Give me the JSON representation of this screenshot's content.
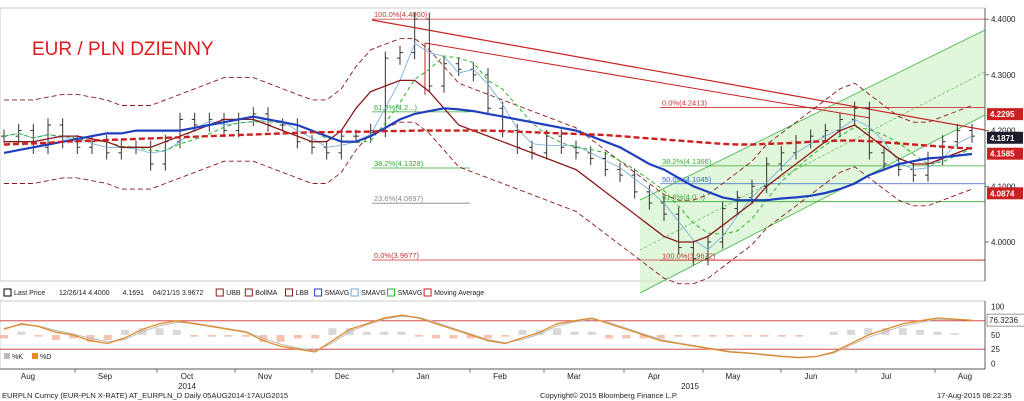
{
  "title": "EUR / PLN DZIENNY",
  "colors": {
    "candle": "#333333",
    "boll_band": "#8b1a1a",
    "sma_blue": "#1f3fbf",
    "sma_red": "#cc1f1f",
    "sma_green": "#2db42d",
    "sma_light": "#6fa8dc",
    "channel_fill": "#c8f0c0",
    "channel_line": "#3cb43c",
    "trendline": "#cc2020",
    "fib_red": "#cc3333",
    "fib_green": "#33aa33",
    "fib_blue": "#3366cc",
    "fib_grey": "#888888",
    "stoch_k": "#e08a2a",
    "stoch_d": "#bbbbbb",
    "stoch_hist": "#f3b49c",
    "badge_red": "#cc1f1f",
    "badge_dark": "#1c1c2c"
  },
  "chart_data": [
    {
      "type": "line",
      "title": "EUR / PLN DZIENNY",
      "ylim": [
        3.93,
        4.42
      ],
      "yticks": [
        4.0,
        4.1,
        4.2,
        4.3,
        4.4
      ],
      "ytick_labels": [
        "4.0000",
        "4.1000",
        "4.2000",
        "4.3000",
        "4.4000"
      ],
      "x_month_labels": [
        "Aug",
        "Sep",
        "Oct",
        "Nov",
        "Dec",
        "Jan",
        "Feb",
        "Mar",
        "Apr",
        "May",
        "Jun",
        "Jul",
        "Aug"
      ],
      "x_year_labels": [
        "2014",
        "2015"
      ],
      "price_badges": [
        {
          "label": "4.2295",
          "value": 4.2295,
          "color": "badge_red"
        },
        {
          "label": "4.1871",
          "value": 4.1871,
          "color": "badge_dark"
        },
        {
          "label": "4.1585",
          "value": 4.1585,
          "color": "badge_red"
        },
        {
          "label": "4.0874",
          "value": 4.0874,
          "color": "badge_red"
        }
      ],
      "fib_levels": [
        {
          "label": "100.0%(4.4000)",
          "value": 4.4,
          "color": "fib_red"
        },
        {
          "label": "61.8%(4.2...)",
          "value": 4.2335,
          "color": "fib_green"
        },
        {
          "label": "0.0%(4.2413)",
          "value": 4.2413,
          "color": "fib_red"
        },
        {
          "label": "38.2%(4.1328)",
          "value": 4.1328,
          "color": "fib_green"
        },
        {
          "label": "38.2%(4.1366)",
          "value": 4.1366,
          "color": "fib_green"
        },
        {
          "label": "50.0%(4.1045)",
          "value": 4.1045,
          "color": "fib_blue"
        },
        {
          "label": "61.8%(4.0...)",
          "value": 4.0724,
          "color": "fib_green"
        },
        {
          "label": "23.6%(4.0697)",
          "value": 4.0697,
          "color": "fib_grey"
        },
        {
          "label": "0.0%(3.9677)",
          "value": 3.9677,
          "color": "fib_red"
        },
        {
          "label": "100.0%(3.9672)",
          "value": 3.9672,
          "color": "fib_red"
        }
      ],
      "legend": [
        {
          "icon": "bar",
          "label": "Last Price"
        },
        {
          "icon": "none",
          "label": "12/26/14 4.4000"
        },
        {
          "icon": "none",
          "label": "4.1691"
        },
        {
          "icon": "none",
          "label": "04/21/15 3.9672"
        },
        {
          "icon": "ubb",
          "label": "UBB"
        },
        {
          "icon": "boll",
          "label": "BollMA"
        },
        {
          "icon": "lbb",
          "label": "LBB"
        },
        {
          "icon": "sma1",
          "label": "SMAVG"
        },
        {
          "icon": "sma2",
          "label": "SMAVG"
        },
        {
          "icon": "sma3",
          "label": "SMAVG"
        },
        {
          "icon": "ma",
          "label": "Moving Average"
        }
      ],
      "series": [
        {
          "name": "Last Price",
          "values": [
            4.19,
            4.2,
            4.17,
            4.21,
            4.18,
            4.17,
            4.18,
            4.16,
            4.17,
            4.17,
            4.14,
            4.18,
            4.22,
            4.21,
            4.22,
            4.2,
            4.22,
            4.23,
            4.21,
            4.21,
            4.18,
            4.17,
            4.16,
            4.19,
            4.19,
            4.2,
            4.33,
            4.34,
            4.4,
            4.28,
            4.32,
            4.31,
            4.3,
            4.24,
            4.2,
            4.17,
            4.16,
            4.19,
            4.17,
            4.16,
            4.15,
            4.13,
            4.12,
            4.09,
            4.07,
            4.05,
            3.99,
            3.97,
            4.0,
            4.06,
            4.08,
            4.1,
            4.14,
            4.16,
            4.18,
            4.19,
            4.2,
            4.22,
            4.24,
            4.16,
            4.14,
            4.13,
            4.12,
            4.15,
            4.18,
            4.2,
            4.19
          ]
        },
        {
          "name": "SMAVG",
          "values": [
            4.16,
            4.165,
            4.17,
            4.175,
            4.18,
            4.185,
            4.19,
            4.195,
            4.195,
            4.2,
            4.2,
            4.2,
            4.2,
            4.205,
            4.21,
            4.215,
            4.22,
            4.225,
            4.22,
            4.215,
            4.21,
            4.2,
            4.19,
            4.18,
            4.18,
            4.19,
            4.205,
            4.22,
            4.23,
            4.235,
            4.24,
            4.238,
            4.235,
            4.23,
            4.225,
            4.22,
            4.215,
            4.21,
            4.205,
            4.2,
            4.19,
            4.18,
            4.17,
            4.155,
            4.14,
            4.13,
            4.115,
            4.1,
            4.09,
            4.08,
            4.075,
            4.075,
            4.075,
            4.078,
            4.08,
            4.083,
            4.088,
            4.095,
            4.105,
            4.12,
            4.13,
            4.14,
            4.145,
            4.15,
            4.152,
            4.155,
            4.158
          ]
        },
        {
          "name": "Moving Average",
          "values": [
            4.175,
            4.176,
            4.177,
            4.178,
            4.18,
            4.181,
            4.182,
            4.183,
            4.184,
            4.185,
            4.186,
            4.187,
            4.188,
            4.189,
            4.19,
            4.191,
            4.192,
            4.193,
            4.194,
            4.195,
            4.196,
            4.197,
            4.197,
            4.198,
            4.198,
            4.198,
            4.199,
            4.199,
            4.2,
            4.2,
            4.2,
            4.2,
            4.2,
            4.2,
            4.199,
            4.198,
            4.197,
            4.196,
            4.195,
            4.194,
            4.193,
            4.192,
            4.19,
            4.188,
            4.186,
            4.184,
            4.182,
            4.18,
            4.178,
            4.176,
            4.175,
            4.175,
            4.176,
            4.177,
            4.178,
            4.18,
            4.181,
            4.182,
            4.182,
            4.181,
            4.179,
            4.177,
            4.175,
            4.173,
            4.171,
            4.169,
            4.168
          ]
        },
        {
          "name": "BollMA",
          "values": [
            4.18,
            4.18,
            4.18,
            4.185,
            4.19,
            4.19,
            4.185,
            4.18,
            4.17,
            4.17,
            4.17,
            4.18,
            4.19,
            4.2,
            4.21,
            4.22,
            4.22,
            4.22,
            4.21,
            4.2,
            4.19,
            4.18,
            4.18,
            4.2,
            4.24,
            4.27,
            4.28,
            4.29,
            4.29,
            4.27,
            4.24,
            4.21,
            4.2,
            4.19,
            4.18,
            4.17,
            4.16,
            4.15,
            4.14,
            4.13,
            4.11,
            4.09,
            4.07,
            4.05,
            4.03,
            4.01,
            4.0,
            4.0,
            4.01,
            4.03,
            4.05,
            4.07,
            4.1,
            4.12,
            4.14,
            4.16,
            4.18,
            4.2,
            4.21,
            4.19,
            4.17,
            4.15,
            4.14,
            4.14,
            4.15,
            4.16,
            4.17
          ]
        }
      ]
    },
    {
      "type": "line",
      "ylim": [
        -10,
        110
      ],
      "yticks": [
        0,
        25,
        50,
        75,
        100
      ],
      "ytick_labels": [
        "0",
        "25",
        "50",
        "",
        "100"
      ],
      "value_badge": {
        "label": "76.3236",
        "value": 76.3236
      },
      "legend": [
        {
          "icon": "k",
          "label": "%K"
        },
        {
          "icon": "d",
          "label": "%D"
        }
      ],
      "series": [
        {
          "name": "%K",
          "values": [
            60,
            70,
            65,
            55,
            50,
            40,
            35,
            45,
            60,
            70,
            75,
            70,
            65,
            60,
            55,
            40,
            30,
            25,
            20,
            40,
            60,
            70,
            80,
            85,
            80,
            70,
            60,
            50,
            40,
            35,
            45,
            55,
            70,
            75,
            80,
            70,
            60,
            50,
            40,
            35,
            30,
            25,
            20,
            18,
            15,
            12,
            10,
            12,
            20,
            35,
            50,
            60,
            70,
            75,
            80,
            78,
            76
          ]
        },
        {
          "name": "%D",
          "values": [
            62,
            68,
            66,
            58,
            52,
            44,
            38,
            42,
            56,
            66,
            72,
            71,
            66,
            61,
            56,
            44,
            34,
            27,
            22,
            36,
            56,
            68,
            78,
            83,
            81,
            72,
            62,
            52,
            42,
            36,
            42,
            52,
            66,
            73,
            78,
            72,
            62,
            52,
            42,
            36,
            31,
            26,
            21,
            19,
            16,
            13,
            11,
            12,
            18,
            32,
            46,
            56,
            66,
            72,
            78,
            77,
            76
          ]
        }
      ]
    }
  ],
  "footer": {
    "left": "EURPLN Curncy (EUR-PLN X-RATE) AT_EURPLN_D  Daily 05AUG2014-17AUG2015",
    "center": "Copyright© 2015 Bloomberg Finance L.P.",
    "right": "17-Aug-2015 08:22:35"
  }
}
